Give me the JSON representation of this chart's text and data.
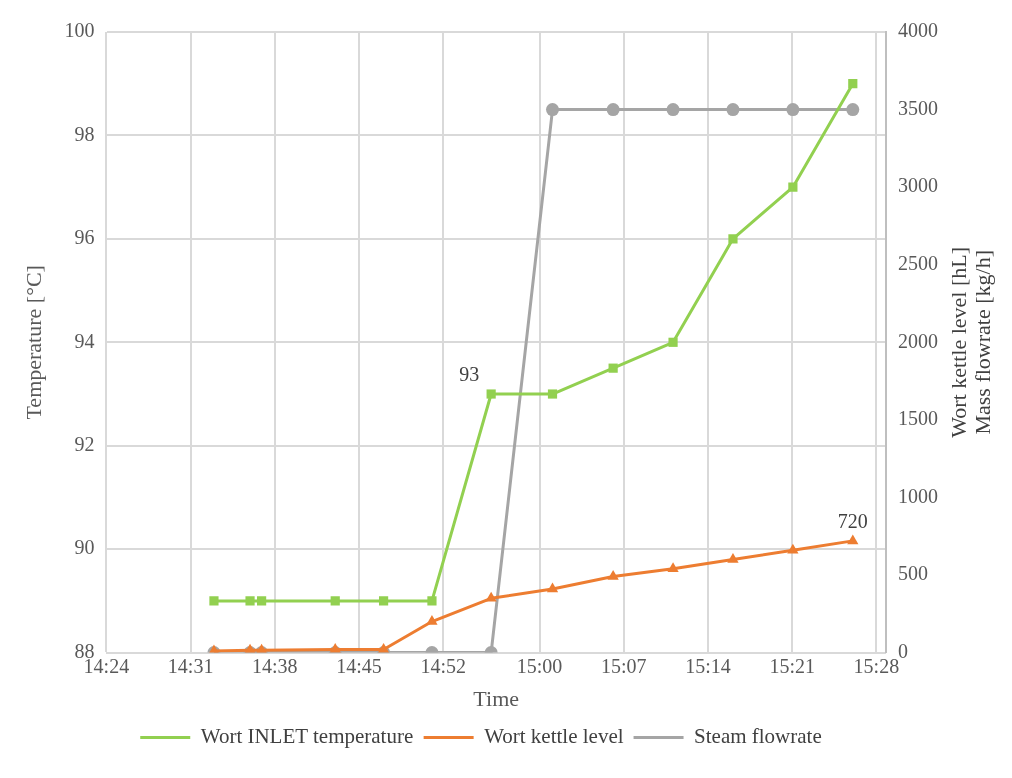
{
  "chart_data": {
    "type": "line",
    "xlabel": "Time",
    "ylabel": "Temperature [°C]",
    "y2label": "Wort kettle level [hL]\nMass flowrate [kg/h]",
    "x": [
      14.549,
      14.599,
      14.615,
      14.717,
      14.784,
      14.851,
      14.933,
      15.018,
      15.102,
      15.185,
      15.268,
      15.351,
      15.434
    ],
    "xlim": [
      14.4,
      15.48
    ],
    "xticks": [
      {
        "value": 14.4,
        "label": "14:24"
      },
      {
        "value": 14.5167,
        "label": "14:31"
      },
      {
        "value": 14.6333,
        "label": "14:38"
      },
      {
        "value": 14.75,
        "label": "14:45"
      },
      {
        "value": 14.8667,
        "label": "14:52"
      },
      {
        "value": 15.0,
        "label": "15:00"
      },
      {
        "value": 15.1167,
        "label": "15:07"
      },
      {
        "value": 15.2333,
        "label": "15:14"
      },
      {
        "value": 15.35,
        "label": "15:21"
      },
      {
        "value": 15.4667,
        "label": "15:28"
      }
    ],
    "ylim": [
      88,
      100
    ],
    "yticks": [
      88,
      90,
      92,
      94,
      96,
      98,
      100
    ],
    "y2lim": [
      0,
      4000
    ],
    "y2ticks": [
      0,
      500,
      1000,
      1500,
      2000,
      2500,
      3000,
      3500,
      4000
    ],
    "series": [
      {
        "name": "Wort INLET temperature",
        "color": "#92d050",
        "marker": "square",
        "values": [
          89,
          89,
          89,
          89,
          89,
          89,
          93,
          93,
          93.5,
          94,
          96,
          97,
          99
        ],
        "value_labels": [
          null,
          null,
          null,
          null,
          null,
          null,
          "93",
          null,
          null,
          null,
          null,
          null,
          null
        ]
      },
      {
        "name": "Wort kettle level",
        "color": "#ed7d31",
        "marker": "triangle",
        "axis": "y2",
        "values": [
          10,
          15,
          15,
          20,
          20,
          200,
          350,
          410,
          490,
          540,
          600,
          660,
          720
        ],
        "value_labels": [
          null,
          null,
          null,
          null,
          null,
          null,
          null,
          null,
          null,
          null,
          null,
          null,
          "720"
        ]
      },
      {
        "name": "Steam flowrate",
        "color": "#a5a5a5",
        "marker": "circle",
        "axis": "y2",
        "values": [
          0,
          0,
          0,
          0,
          0,
          0,
          0,
          3500,
          3500,
          3500,
          3500,
          3500,
          3500
        ]
      }
    ],
    "grid": true,
    "legend": "bottom"
  }
}
